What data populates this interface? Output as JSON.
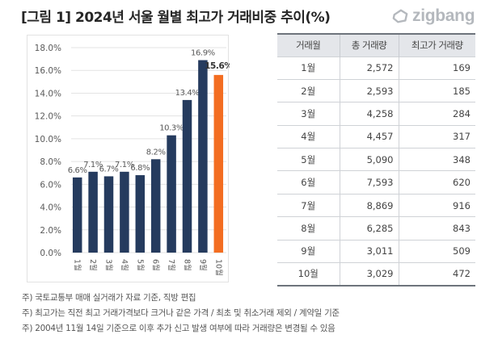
{
  "header": {
    "title": "[그림 1] 2024년 서울 월별 최고가 거래비중 추이(%)",
    "logo_text": "zigbang",
    "logo_icon": "zigbang-house-icon"
  },
  "chart_data": {
    "type": "bar",
    "title": "2024년 서울 월별 최고가 거래비중 추이(%)",
    "xlabel": "",
    "ylabel": "",
    "categories": [
      "1월",
      "2월",
      "3월",
      "4월",
      "5월",
      "6월",
      "7월",
      "8월",
      "9월",
      "10월"
    ],
    "values": [
      6.6,
      7.1,
      6.7,
      7.1,
      6.8,
      8.2,
      10.3,
      13.4,
      16.9,
      15.6
    ],
    "data_labels": [
      "6.6%",
      "7.1%",
      "6.7%",
      "7.1%",
      "6.8%",
      "8.2%",
      "10.3%",
      "13.4%",
      "16.9%",
      "15.6%"
    ],
    "highlight_index": 9,
    "ylim": [
      0,
      18
    ],
    "yticks": [
      0,
      2,
      4,
      6,
      8,
      10,
      12,
      14,
      16,
      18
    ],
    "ytick_labels": [
      "0.0%",
      "2.0%",
      "4.0%",
      "6.0%",
      "8.0%",
      "10.0%",
      "12.0%",
      "14.0%",
      "16.0%",
      "18.0%"
    ],
    "grid": true,
    "legend": "none",
    "colors": {
      "default": "#253b5e",
      "highlight": "#f36d21",
      "grid": "#e3e3e3",
      "label": "#595959"
    }
  },
  "table": {
    "headers": [
      "거래월",
      "총 거래량",
      "최고가 거래량"
    ],
    "rows": [
      [
        "1월",
        "2,572",
        "169"
      ],
      [
        "2월",
        "2,593",
        "185"
      ],
      [
        "3월",
        "4,258",
        "284"
      ],
      [
        "4월",
        "4,457",
        "317"
      ],
      [
        "5월",
        "5,090",
        "348"
      ],
      [
        "6월",
        "7,593",
        "620"
      ],
      [
        "7월",
        "8,869",
        "916"
      ],
      [
        "8월",
        "6,285",
        "843"
      ],
      [
        "9월",
        "3,011",
        "509"
      ],
      [
        "10월",
        "3,029",
        "472"
      ]
    ]
  },
  "notes": [
    "주) 국토교통부 매매 실거래가 자료 기준, 직방 편집",
    "주) 최고가는 직전 최고 거래가격보다 크거나 같은 가격 / 최초 및 취소거래 제외  / 계약일 기준",
    "주) 2004년 11월 14일 기준으로 이후 추가 신고 발생 여부에 따라 거래량은 변경될 수 있음"
  ]
}
